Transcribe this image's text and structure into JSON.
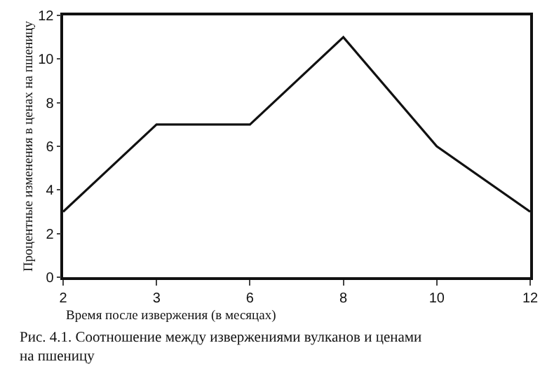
{
  "chart_data": {
    "type": "line",
    "categories": [
      "2",
      "3",
      "6",
      "8",
      "10",
      "12"
    ],
    "values": [
      3,
      7,
      7,
      11,
      6,
      3
    ],
    "color": "#111111",
    "xlabel": "Время после извержения (в месяцах)",
    "ylabel": "Процентные изменения в ценах на пшеницу",
    "ylim": [
      0,
      12
    ],
    "yticks": [
      0,
      2,
      4,
      6,
      8,
      10,
      12
    ],
    "legend": false,
    "marker": "none",
    "line_style": "solid",
    "annotations": [
      "Рис. 4.1. Соотношение между извержениями вулканов и ценами на пшеницу"
    ]
  }
}
